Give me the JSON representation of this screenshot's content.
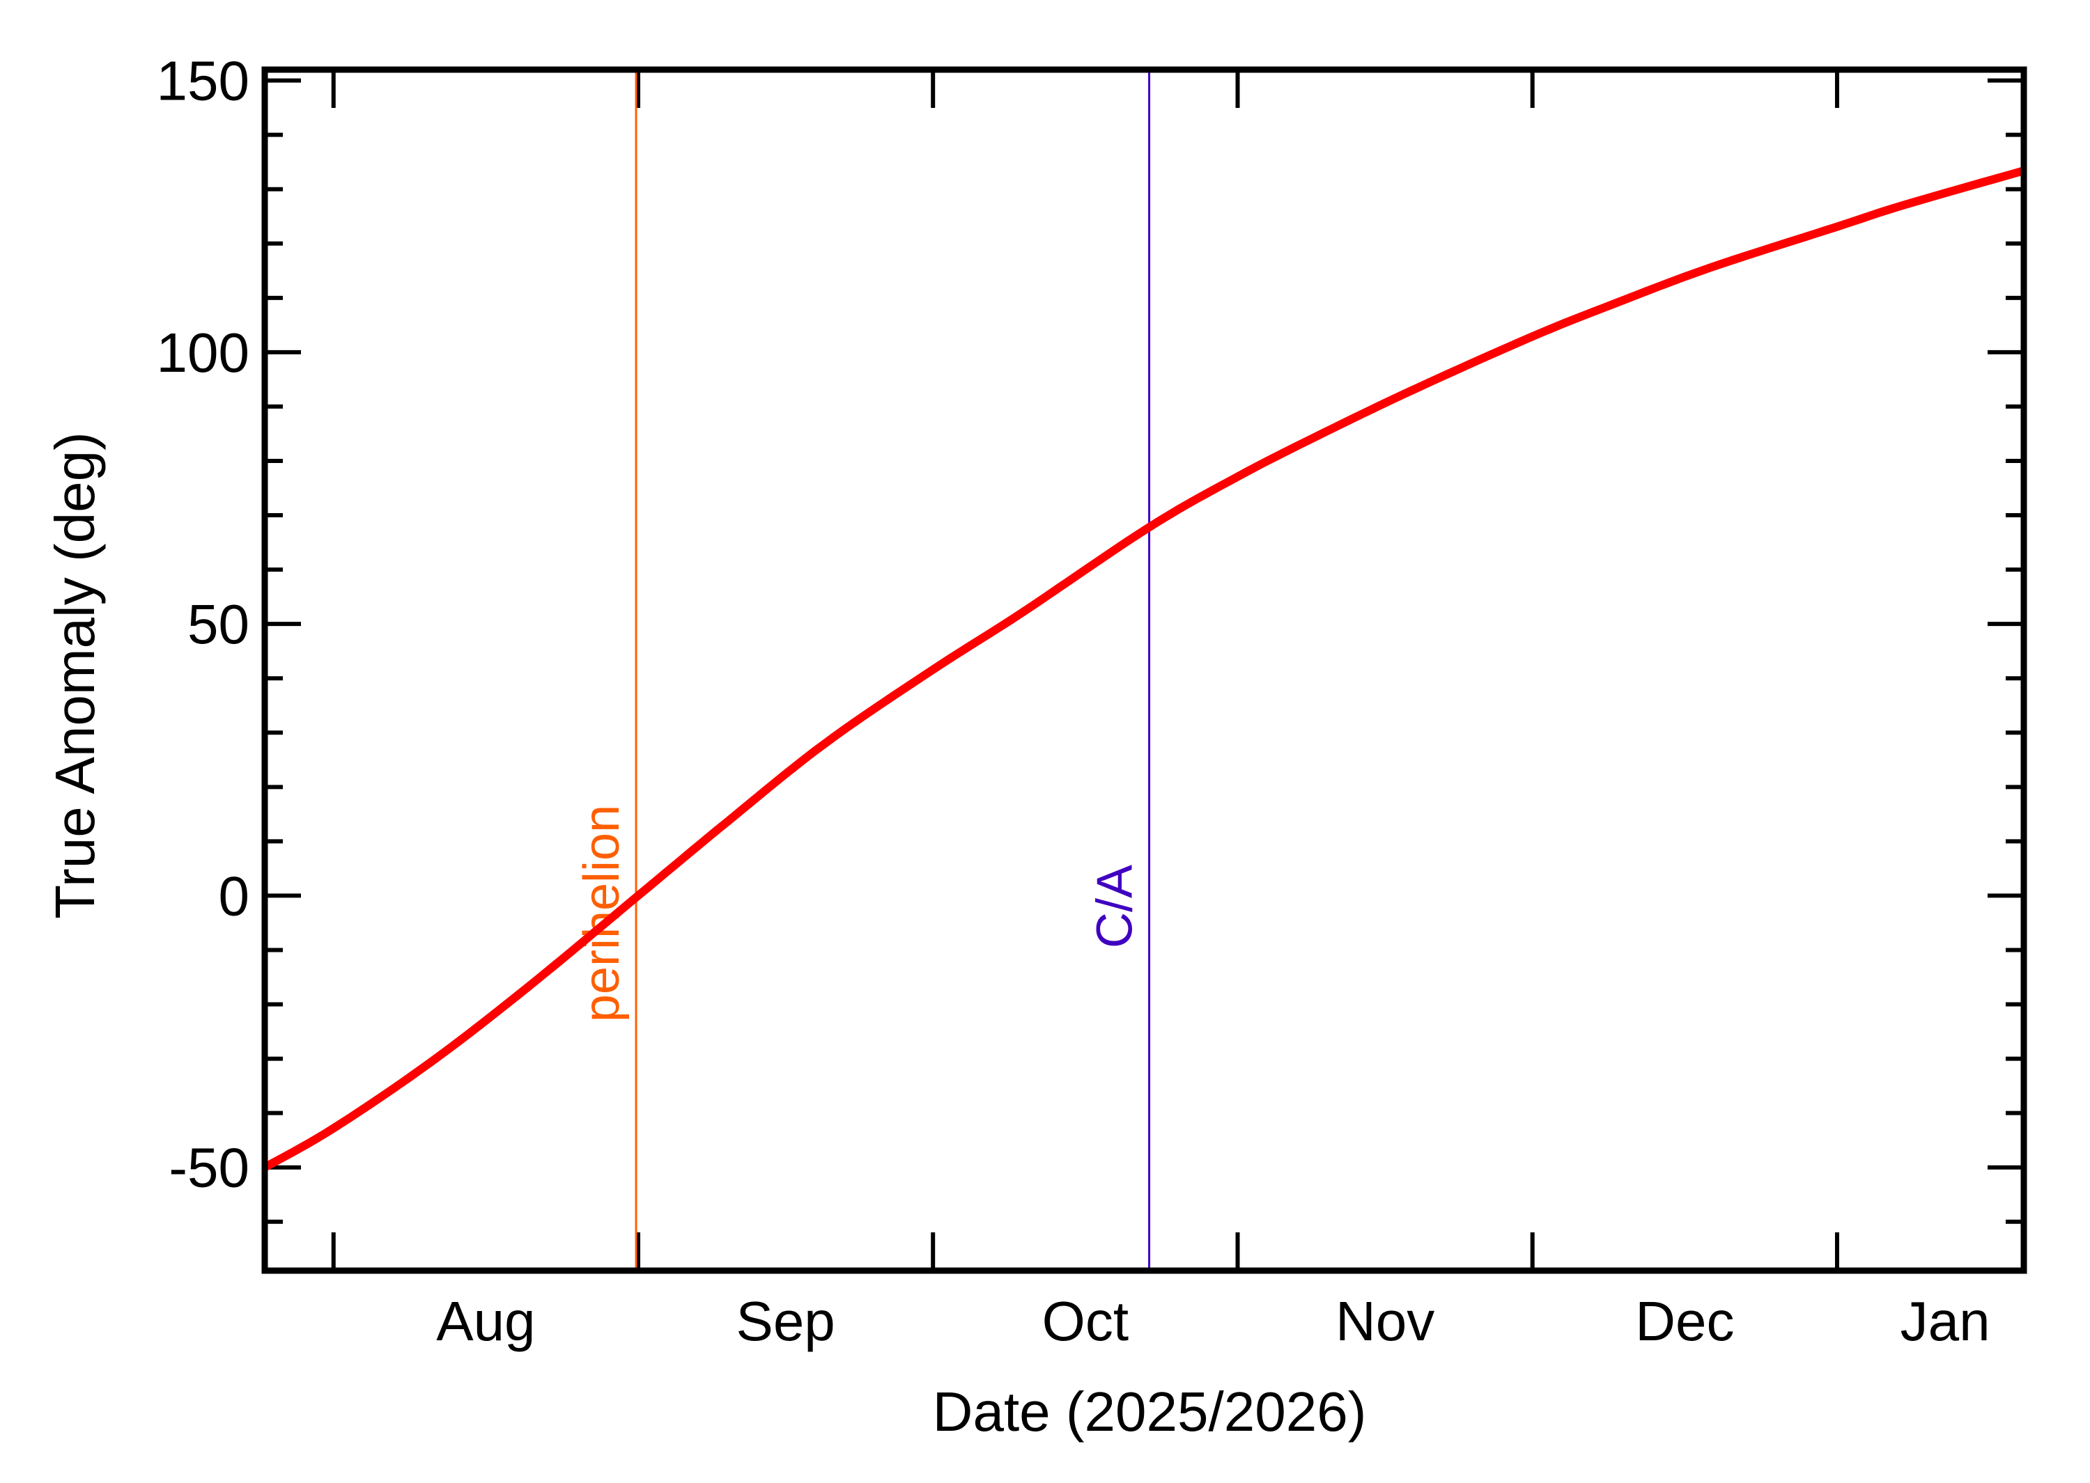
{
  "chart_data": {
    "type": "line",
    "title": "",
    "xlabel": "Date (2025/2026)",
    "ylabel": "True Anomaly (deg)",
    "ylim": [
      -69,
      152
    ],
    "xlim_days": [
      -7,
      172
    ],
    "x_reference": "days since 2025-08-01",
    "grid": false,
    "legend": null,
    "yticks_major": [
      -50,
      0,
      50,
      100,
      150
    ],
    "yticks_major_labels": [
      "-50",
      "0",
      "50",
      "100",
      "150"
    ],
    "yticks_minor_step": 10,
    "xticks": [
      {
        "day": 0,
        "date": "2025-08-01"
      },
      {
        "day": 31,
        "date": "2025-09-01"
      },
      {
        "day": 61,
        "date": "2025-10-01"
      },
      {
        "day": 92,
        "date": "2025-11-01"
      },
      {
        "day": 122,
        "date": "2025-12-01"
      },
      {
        "day": 153,
        "date": "2026-01-01"
      }
    ],
    "xtick_labels": [
      {
        "label": "Aug",
        "day": 15.5
      },
      {
        "label": "Sep",
        "day": 46
      },
      {
        "label": "Oct",
        "day": 76.5
      },
      {
        "label": "Nov",
        "day": 107
      },
      {
        "label": "Dec",
        "day": 137.5
      },
      {
        "label": "Jan",
        "day": 164
      }
    ],
    "series": [
      {
        "name": "True Anomaly",
        "color": "#ff0000",
        "x_days": [
          -7,
          0,
          10,
          20,
          31,
          40,
          50,
          61,
          70,
          83,
          92,
          100,
          110,
          122,
          130,
          140,
          153,
          160,
          172
        ],
        "x_dates": [
          "2025-07-25",
          "2025-08-01",
          "2025-08-11",
          "2025-08-21",
          "2025-09-01",
          "2025-09-10",
          "2025-09-20",
          "2025-10-01",
          "2025-10-10",
          "2025-10-23",
          "2025-11-01",
          "2025-11-09",
          "2025-11-19",
          "2025-12-01",
          "2025-12-09",
          "2025-12-19",
          "2026-01-01",
          "2026-01-08",
          "2026-01-20"
        ],
        "values": [
          -50,
          -42.8,
          -30.5,
          -16.5,
          0,
          13.5,
          28,
          41.6,
          52,
          67.8,
          77.1,
          84.5,
          93.2,
          102.9,
          108.7,
          115.5,
          123.1,
          127.2,
          133.4
        ]
      }
    ],
    "annotations": [
      {
        "label": "perihelion",
        "day": 31,
        "date": "2025-09-01",
        "color": "#ff5f00",
        "type": "vertical-line"
      },
      {
        "label": "C/A",
        "day": 83,
        "date": "2025-10-23",
        "color": "#4000c0",
        "type": "vertical-line"
      }
    ]
  },
  "labels": {
    "xlabel": "Date (2025/2026)",
    "ylabel": "True Anomaly (deg)",
    "perihelion": "perihelion",
    "ca": "C/A"
  }
}
